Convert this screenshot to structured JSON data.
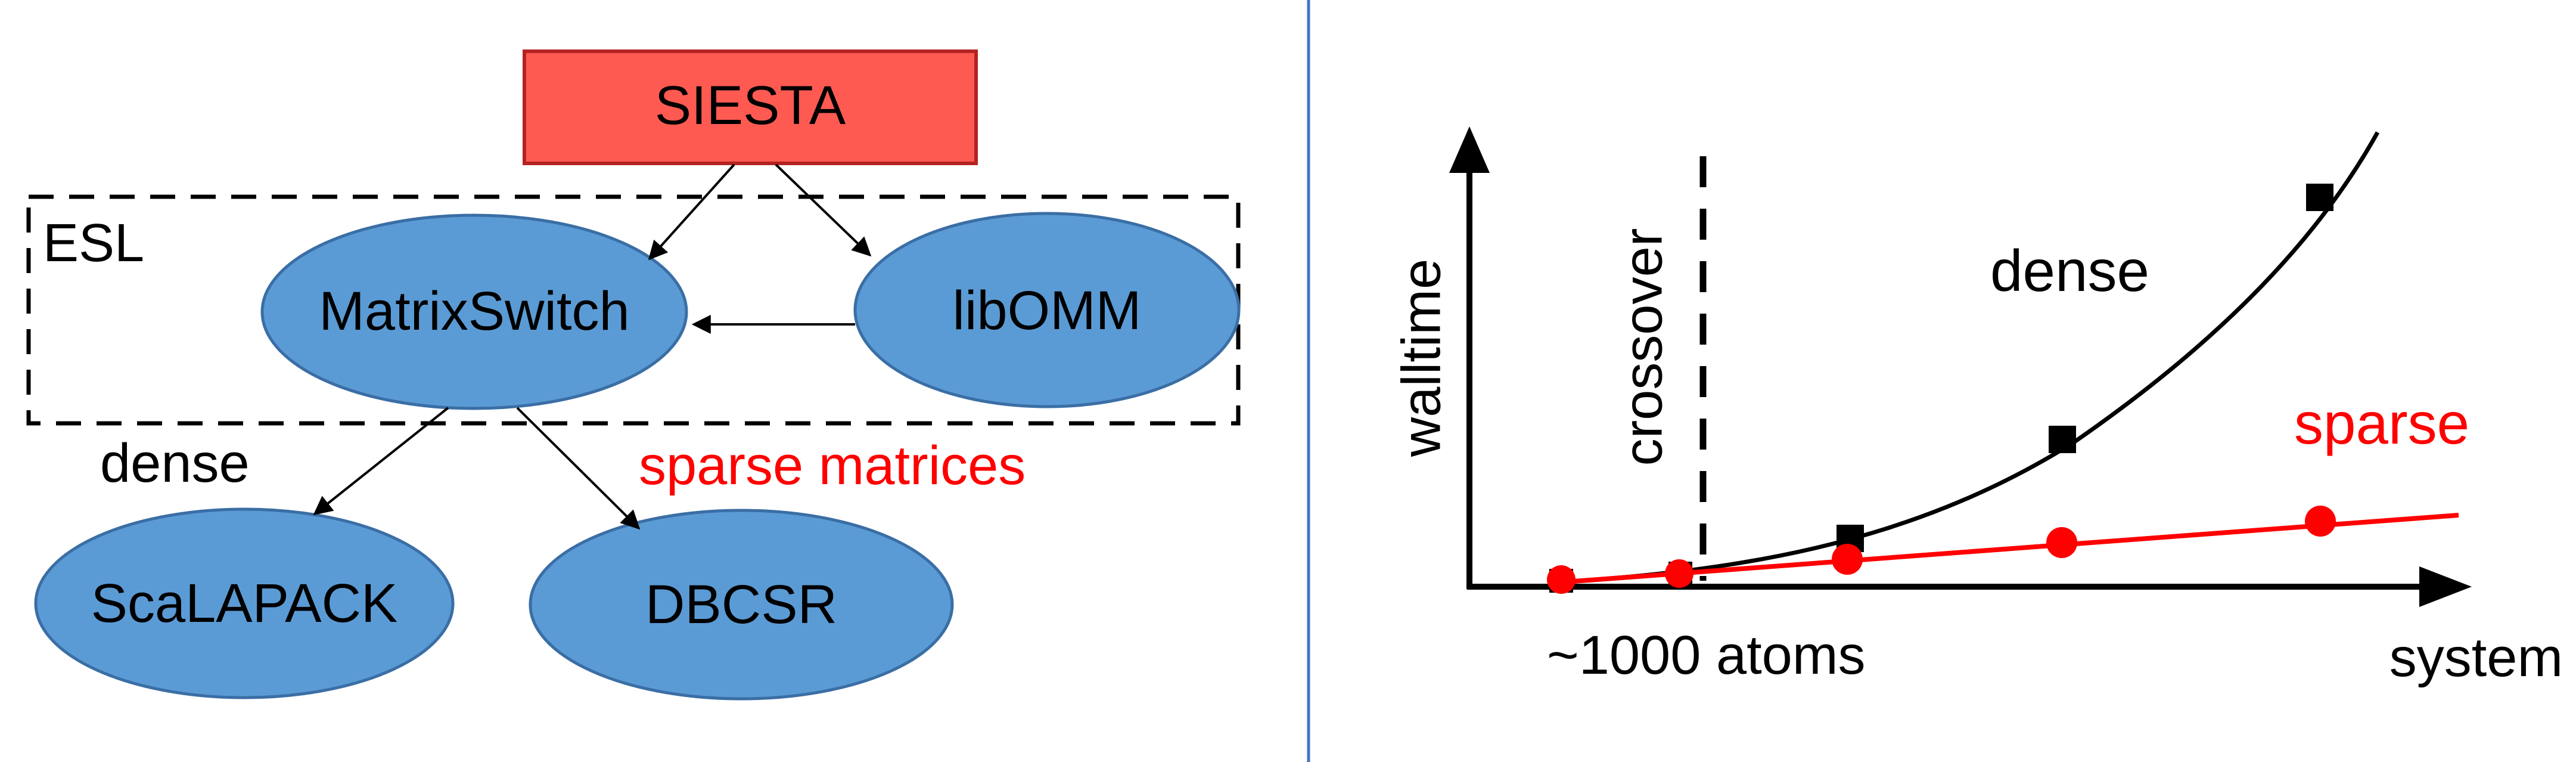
{
  "diagram": {
    "nodes": {
      "siesta": "SIESTA",
      "esl": "ESL",
      "matrixswitch": "MatrixSwitch",
      "libomm": "libOMM",
      "scalapack": "ScaLAPACK",
      "dbcsr": "DBCSR"
    },
    "edge_labels": {
      "dense": "dense",
      "sparse": "sparse matrices"
    }
  },
  "chart_data": {
    "type": "line",
    "title": "",
    "xlabel": "system size",
    "ylabel": "walltime",
    "crossover_label": "crossover",
    "crossover_tick_label": "~1000 atoms",
    "series": [
      {
        "name": "dense",
        "color": "#000000",
        "marker": "square"
      },
      {
        "name": "sparse",
        "color": "#ff0000",
        "marker": "circle"
      }
    ],
    "colors": {
      "dense": "#000000",
      "sparse": "#ff0000"
    }
  },
  "colors": {
    "siesta_fill": "#ff5a52",
    "siesta_stroke": "#b42222",
    "node_fill": "#5b9bd5",
    "node_stroke": "#3a6ea5",
    "divider": "#4472c4",
    "sparse_text": "#ff0000"
  }
}
